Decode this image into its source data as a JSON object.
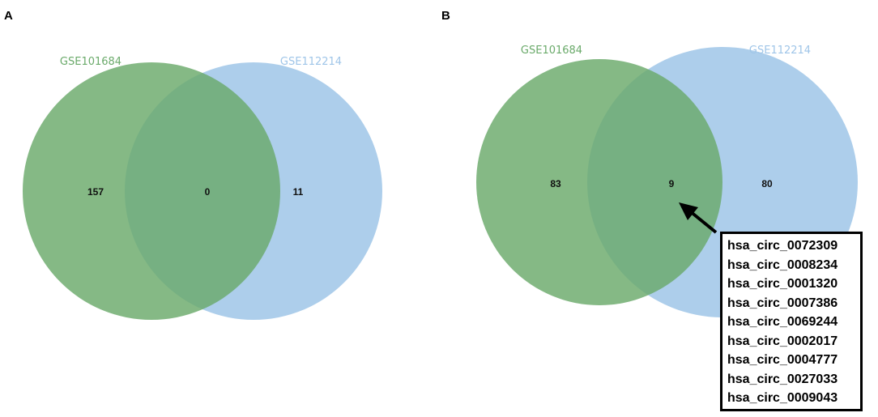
{
  "panels": [
    {
      "label": "A",
      "sets": [
        {
          "name": "GSE101684",
          "color": "#6aaa6a"
        },
        {
          "name": "GSE112214",
          "color": "#9fc5e8"
        }
      ],
      "counts": {
        "left_only": "157",
        "overlap": "0",
        "right_only": "11"
      }
    },
    {
      "label": "B",
      "sets": [
        {
          "name": "GSE101684",
          "color": "#6aaa6a"
        },
        {
          "name": "GSE112214",
          "color": "#9fc5e8"
        }
      ],
      "counts": {
        "left_only": "83",
        "overlap": "9",
        "right_only": "80"
      },
      "overlap_ids": [
        "hsa_circ_0072309",
        "hsa_circ_0008234",
        "hsa_circ_0001320",
        "hsa_circ_0007386",
        "hsa_circ_0069244",
        "hsa_circ_0002017",
        "hsa_circ_0004777",
        "hsa_circ_0027033",
        "hsa_circ_0009043"
      ]
    }
  ]
}
